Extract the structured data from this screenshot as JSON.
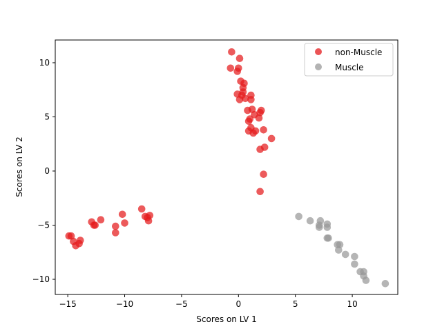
{
  "chart_data": {
    "type": "scatter",
    "xlabel": "Scores on LV 1",
    "ylabel": "Scores on LV 2",
    "xlim": [
      -16.1,
      14.0
    ],
    "ylim": [
      -11.4,
      12.1
    ],
    "xticks": [
      -15,
      -10,
      -5,
      0,
      5,
      10
    ],
    "yticks": [
      -10,
      -5,
      0,
      5,
      10
    ],
    "xtick_labels": [
      "−15",
      "−10",
      "−5",
      "0",
      "5",
      "10"
    ],
    "ytick_labels": [
      "−10",
      "−5",
      "0",
      "5",
      "10"
    ],
    "grid": false,
    "legend_position": "top-right",
    "series": [
      {
        "name": "non-Muscle",
        "color": "#e41a1c",
        "points": [
          [
            -0.6,
            11.0
          ],
          [
            0.1,
            10.4
          ],
          [
            -0.7,
            9.5
          ],
          [
            0.0,
            9.5
          ],
          [
            -0.1,
            9.2
          ],
          [
            0.2,
            8.3
          ],
          [
            0.5,
            8.1
          ],
          [
            0.4,
            7.7
          ],
          [
            0.4,
            7.3
          ],
          [
            0.3,
            7.0
          ],
          [
            1.1,
            7.0
          ],
          [
            -0.1,
            7.1
          ],
          [
            0.1,
            6.6
          ],
          [
            0.6,
            6.7
          ],
          [
            1.1,
            6.6
          ],
          [
            1.2,
            5.7
          ],
          [
            0.8,
            5.6
          ],
          [
            1.9,
            5.4
          ],
          [
            2.0,
            5.6
          ],
          [
            1.4,
            5.2
          ],
          [
            1.8,
            4.9
          ],
          [
            1.0,
            4.8
          ],
          [
            0.9,
            4.6
          ],
          [
            1.1,
            4.0
          ],
          [
            2.2,
            3.8
          ],
          [
            1.5,
            3.7
          ],
          [
            0.9,
            3.7
          ],
          [
            1.3,
            3.5
          ],
          [
            2.9,
            3.0
          ],
          [
            2.3,
            2.2
          ],
          [
            1.9,
            2.0
          ],
          [
            2.2,
            -0.3
          ],
          [
            1.9,
            -1.9
          ],
          [
            -8.5,
            -3.5
          ],
          [
            -7.8,
            -4.1
          ],
          [
            -8.2,
            -4.2
          ],
          [
            -8.0,
            -4.3
          ],
          [
            -7.9,
            -4.6
          ],
          [
            -10.2,
            -4.0
          ],
          [
            -10.0,
            -4.8
          ],
          [
            -10.8,
            -5.1
          ],
          [
            -10.8,
            -5.7
          ],
          [
            -12.1,
            -4.5
          ],
          [
            -12.9,
            -4.7
          ],
          [
            -12.6,
            -5.0
          ],
          [
            -12.7,
            -5.0
          ],
          [
            -13.9,
            -6.4
          ],
          [
            -14.0,
            -6.7
          ],
          [
            -14.7,
            -6.0
          ],
          [
            -14.9,
            -6.0
          ],
          [
            -14.5,
            -6.5
          ],
          [
            -14.3,
            -6.9
          ]
        ]
      },
      {
        "name": "Muscle",
        "color": "#999999",
        "points": [
          [
            5.3,
            -4.2
          ],
          [
            6.3,
            -4.6
          ],
          [
            7.2,
            -4.6
          ],
          [
            7.8,
            -4.9
          ],
          [
            7.1,
            -5.0
          ],
          [
            7.1,
            -5.2
          ],
          [
            7.8,
            -5.2
          ],
          [
            7.9,
            -6.2
          ],
          [
            7.8,
            -6.2
          ],
          [
            8.7,
            -6.8
          ],
          [
            8.9,
            -6.8
          ],
          [
            8.8,
            -7.3
          ],
          [
            9.4,
            -7.7
          ],
          [
            10.2,
            -7.9
          ],
          [
            10.2,
            -8.6
          ],
          [
            10.7,
            -9.3
          ],
          [
            11.0,
            -9.3
          ],
          [
            11.0,
            -9.7
          ],
          [
            11.2,
            -10.1
          ],
          [
            12.9,
            -10.4
          ]
        ]
      }
    ]
  }
}
